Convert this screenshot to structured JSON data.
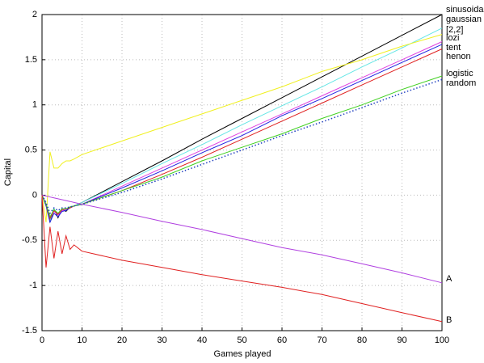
{
  "chart_data": {
    "type": "line",
    "xlabel": "Games played",
    "ylabel": "Capital",
    "x": [
      0,
      1,
      2,
      3,
      4,
      5,
      6,
      7,
      8,
      10,
      20,
      30,
      40,
      50,
      60,
      70,
      80,
      90,
      100
    ],
    "xlim": [
      0,
      100
    ],
    "xticks": [
      0,
      10,
      20,
      30,
      40,
      50,
      60,
      70,
      80,
      90,
      100
    ],
    "ylim": [
      -1.5,
      2
    ],
    "yticks": [
      -1.5,
      -1,
      -0.5,
      0,
      0.5,
      1,
      1.5,
      2
    ],
    "grid": true,
    "series": [
      {
        "name": "sinusoidal",
        "color": "#000000",
        "style": "solid",
        "values": [
          0,
          -0.1,
          -0.3,
          -0.15,
          -0.25,
          -0.15,
          -0.18,
          -0.13,
          -0.12,
          -0.08,
          0.15,
          0.38,
          0.62,
          0.85,
          1.08,
          1.31,
          1.54,
          1.77,
          2.0
        ]
      },
      {
        "name": "gaussian",
        "color": "#66e6e6",
        "style": "solid",
        "values": [
          0,
          -0.1,
          -0.28,
          -0.15,
          -0.22,
          -0.15,
          -0.17,
          -0.13,
          -0.12,
          -0.08,
          0.13,
          0.35,
          0.56,
          0.78,
          0.99,
          1.2,
          1.42,
          1.63,
          1.85
        ]
      },
      {
        "name": "[2,2]",
        "color": "#f0f020",
        "style": "solid",
        "values": [
          0,
          -0.3,
          0.48,
          0.3,
          0.3,
          0.35,
          0.38,
          0.38,
          0.4,
          0.45,
          0.6,
          0.75,
          0.9,
          1.05,
          1.2,
          1.37,
          1.5,
          1.65,
          1.78
        ]
      },
      {
        "name": "lozi",
        "color": "#e040e0",
        "style": "solid",
        "values": [
          0,
          -0.1,
          -0.25,
          -0.18,
          -0.22,
          -0.17,
          -0.16,
          -0.14,
          -0.12,
          -0.1,
          0.1,
          0.3,
          0.5,
          0.7,
          0.9,
          1.1,
          1.3,
          1.5,
          1.7
        ]
      },
      {
        "name": "tent",
        "color": "#2020e0",
        "style": "solid",
        "values": [
          0,
          -0.12,
          -0.3,
          -0.2,
          -0.24,
          -0.18,
          -0.17,
          -0.14,
          -0.12,
          -0.1,
          0.08,
          0.27,
          0.47,
          0.66,
          0.88,
          1.07,
          1.27,
          1.47,
          1.67
        ]
      },
      {
        "name": "henon",
        "color": "#e02020",
        "style": "solid",
        "values": [
          0,
          -0.1,
          -0.26,
          -0.17,
          -0.21,
          -0.16,
          -0.15,
          -0.14,
          -0.12,
          -0.1,
          0.05,
          0.23,
          0.42,
          0.62,
          0.82,
          1.02,
          1.22,
          1.42,
          1.62
        ]
      },
      {
        "name": "logistic",
        "color": "#40d020",
        "style": "solid",
        "values": [
          0,
          -0.1,
          -0.24,
          -0.16,
          -0.2,
          -0.15,
          -0.15,
          -0.13,
          -0.12,
          -0.1,
          0.05,
          0.2,
          0.38,
          0.53,
          0.68,
          0.85,
          1.0,
          1.17,
          1.32
        ]
      },
      {
        "name": "random",
        "color": "#2040c0",
        "style": "dotted",
        "values": [
          0,
          -0.08,
          -0.2,
          -0.14,
          -0.17,
          -0.14,
          -0.14,
          -0.13,
          -0.12,
          -0.1,
          0.03,
          0.18,
          0.34,
          0.5,
          0.66,
          0.81,
          0.97,
          1.13,
          1.28
        ]
      },
      {
        "name": "A",
        "color": "#b040e0",
        "style": "solid",
        "values": [
          0,
          -0.01,
          -0.02,
          -0.03,
          -0.04,
          -0.05,
          -0.06,
          -0.07,
          -0.08,
          -0.1,
          -0.19,
          -0.29,
          -0.38,
          -0.48,
          -0.58,
          -0.66,
          -0.76,
          -0.86,
          -0.97
        ]
      },
      {
        "name": "B",
        "color": "#e02020",
        "style": "solid",
        "values": [
          0,
          -0.8,
          -0.35,
          -0.7,
          -0.4,
          -0.65,
          -0.45,
          -0.6,
          -0.55,
          -0.62,
          -0.72,
          -0.8,
          -0.88,
          -0.95,
          -1.02,
          -1.1,
          -1.2,
          -1.3,
          -1.4
        ]
      }
    ]
  }
}
